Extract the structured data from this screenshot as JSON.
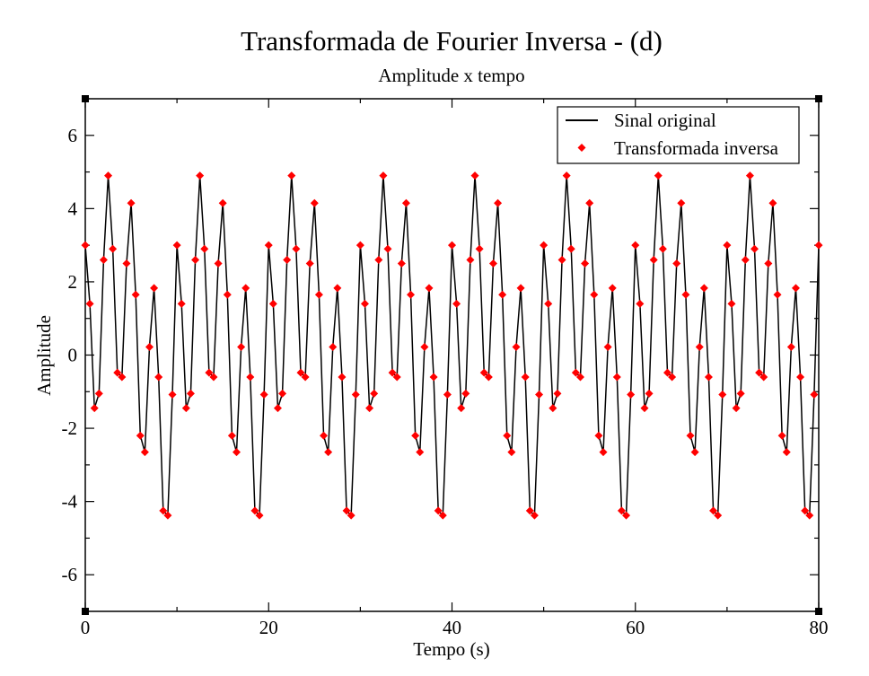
{
  "chart_data": {
    "type": "line",
    "title": "Transformada de Fourier Inversa - (d)",
    "subtitle": "Amplitude x tempo",
    "xlabel": "Tempo (s)",
    "ylabel": "Amplitude",
    "xlim": [
      0,
      80
    ],
    "ylim": [
      -7,
      7
    ],
    "xticks": [
      0,
      20,
      40,
      60,
      80
    ],
    "yticks": [
      -6,
      -4,
      -2,
      0,
      2,
      4,
      6
    ],
    "grid": false,
    "legend_position": "top-right",
    "period": 10,
    "dt": 0.5,
    "one_period_values": [
      3.0,
      1.4,
      -1.45,
      -1.05,
      2.6,
      4.9,
      2.9,
      -0.48,
      -0.6,
      2.5,
      4.15,
      1.65,
      -2.2,
      -2.65,
      0.22,
      1.83,
      -0.6,
      -4.25,
      -4.38,
      -1.08
    ],
    "series": [
      {
        "name": "Sinal original",
        "color": "#000000",
        "style": "line"
      },
      {
        "name": "Transformada inversa",
        "color": "#ff0000",
        "style": "diamond-markers"
      }
    ]
  }
}
